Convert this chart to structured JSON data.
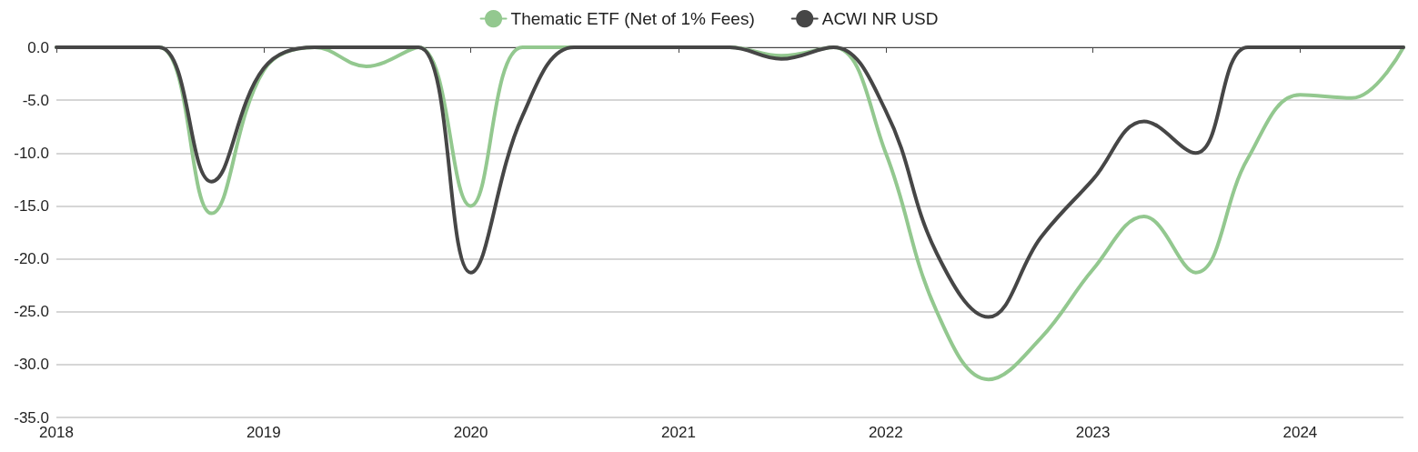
{
  "chart_data": {
    "type": "line",
    "x": [
      "2018-01",
      "2018-04",
      "2018-07",
      "2018-10",
      "2019-01",
      "2019-04",
      "2019-07",
      "2019-10",
      "2020-01",
      "2020-04",
      "2020-07",
      "2020-10",
      "2021-01",
      "2021-04",
      "2021-07",
      "2021-10",
      "2022-01",
      "2022-04",
      "2022-07",
      "2022-10",
      "2023-01",
      "2023-04",
      "2023-07",
      "2023-10",
      "2024-01",
      "2024-04",
      "2024-07"
    ],
    "series": [
      {
        "name": "Thematic ETF (Net of 1% Fees)",
        "color": "#93c88f",
        "values": [
          0,
          0,
          0,
          -15.7,
          -2.2,
          0,
          -1.8,
          0,
          -15,
          0,
          0,
          0,
          0,
          0,
          -0.8,
          0,
          -10,
          -25,
          -31.4,
          -27.5,
          -21,
          -16,
          -21.3,
          -10.5,
          -4.5,
          -4.8,
          0
        ]
      },
      {
        "name": "ACWI NR USD",
        "color": "#464646",
        "values": [
          0,
          0,
          0,
          -12.7,
          -2,
          0,
          0,
          0,
          -21.3,
          -6.5,
          0,
          0,
          0,
          0,
          -1.1,
          0,
          -6,
          -19.5,
          -25.5,
          -18,
          -12.5,
          -7,
          -10,
          0,
          0,
          0,
          0
        ]
      }
    ],
    "xlim": [
      "2018-01",
      "2024-07"
    ],
    "xticks": [
      {
        "value": "2018-01",
        "label": "2018"
      },
      {
        "value": "2019-01",
        "label": "2019"
      },
      {
        "value": "2020-01",
        "label": "2020"
      },
      {
        "value": "2021-01",
        "label": "2021"
      },
      {
        "value": "2022-01",
        "label": "2022"
      },
      {
        "value": "2023-01",
        "label": "2023"
      },
      {
        "value": "2024-01",
        "label": "2024"
      }
    ],
    "ylim": [
      -35,
      0
    ],
    "yticks": [
      {
        "value": -35,
        "label": "-35.0"
      },
      {
        "value": -30,
        "label": "-30.0"
      },
      {
        "value": -25,
        "label": "-25.0"
      },
      {
        "value": -20,
        "label": "-20.0"
      },
      {
        "value": -15,
        "label": "-15.0"
      },
      {
        "value": -10,
        "label": "-10.0"
      },
      {
        "value": -5,
        "label": "-5.0"
      },
      {
        "value": 0,
        "label": "0.0"
      }
    ],
    "grid": "y",
    "legend": "top",
    "marker": "none",
    "line_style": "solid"
  }
}
